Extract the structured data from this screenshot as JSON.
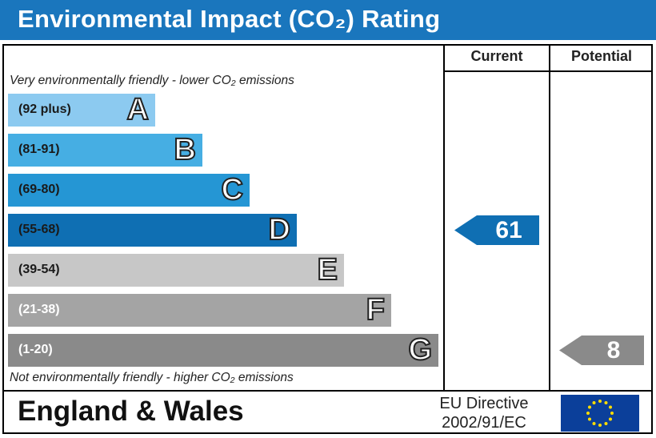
{
  "header": {
    "title": "Environmental Impact (CO₂) Rating"
  },
  "columns": {
    "current": "Current",
    "potential": "Potential"
  },
  "notes": {
    "top": "Very environmentally friendly - lower CO₂ emissions",
    "bottom": "Not environmentally friendly - higher CO₂ emissions"
  },
  "footer": {
    "country": "England & Wales",
    "directive_line1": "EU Directive",
    "directive_line2": "2002/91/EC"
  },
  "chart_data": {
    "type": "bar",
    "title": "Environmental Impact (CO₂) Rating",
    "categories": [
      "A",
      "B",
      "C",
      "D",
      "E",
      "F",
      "G"
    ],
    "ranges": [
      "(92 plus)",
      "(81-91)",
      "(69-80)",
      "(55-68)",
      "(39-54)",
      "(21-38)",
      "(1-20)"
    ],
    "colors": [
      "#8ccaf0",
      "#46aee3",
      "#2596d4",
      "#0f6fb3",
      "#c7c7c7",
      "#a4a4a4",
      "#8a8a8a"
    ],
    "range_text_colors": [
      "#1a1a1a",
      "#1a1a1a",
      "#1a1a1a",
      "#1a1a1a",
      "#1a1a1a",
      "#ffffff",
      "#ffffff"
    ],
    "current": {
      "value": 61,
      "band": "D",
      "color": "#0f6fb3"
    },
    "potential": {
      "value": 8,
      "band": "G",
      "color": "#8a8a8a"
    }
  }
}
